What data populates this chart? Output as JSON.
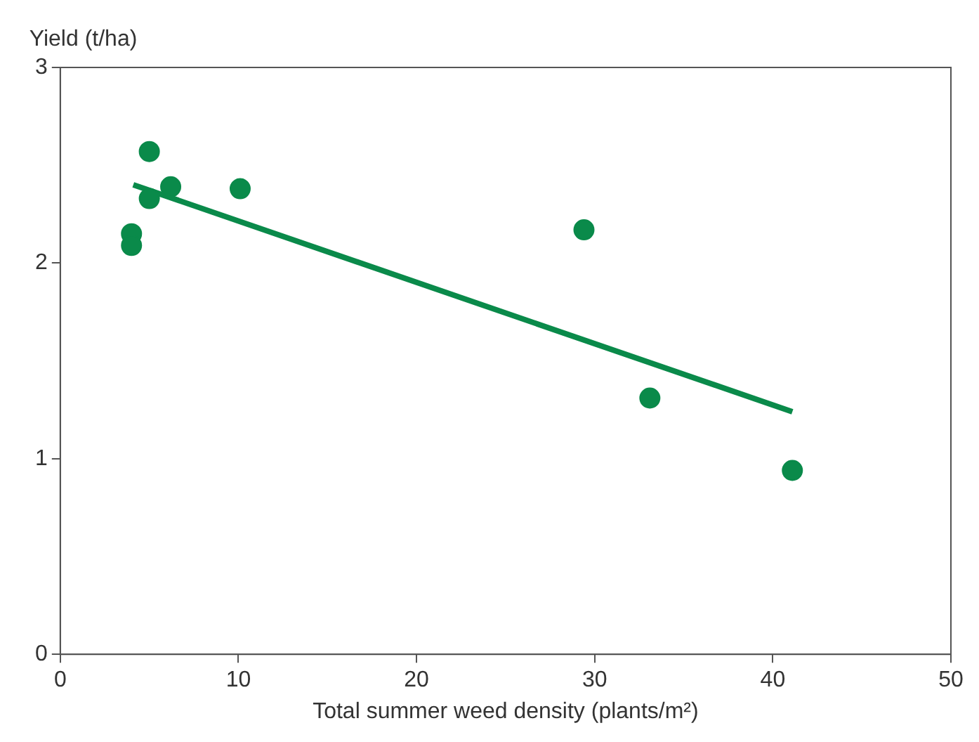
{
  "chart_data": {
    "type": "scatter",
    "xlabel": "Total summer weed density (plants/m²)",
    "ylabel": "Yield (t/ha)",
    "xlim": [
      0,
      50
    ],
    "xticks": [
      0,
      10,
      20,
      30,
      40,
      50
    ],
    "ylim": [
      0,
      3
    ],
    "yticks": [
      0,
      1,
      2,
      3
    ],
    "grid": false,
    "series": [
      {
        "color": "#0a8a4a",
        "marker": "circle",
        "x": [
          5,
          4,
          4,
          5,
          6.2,
          10.1,
          29.4,
          33.1,
          41.1
        ],
        "values": [
          2.57,
          2.15,
          2.09,
          2.33,
          2.39,
          2.38,
          2.17,
          1.31,
          0.94
        ]
      },
      {
        "type": "line",
        "color": "#0a8a4a",
        "x": [
          4.1,
          41.1
        ],
        "values": [
          2.4,
          1.24
        ]
      }
    ]
  }
}
